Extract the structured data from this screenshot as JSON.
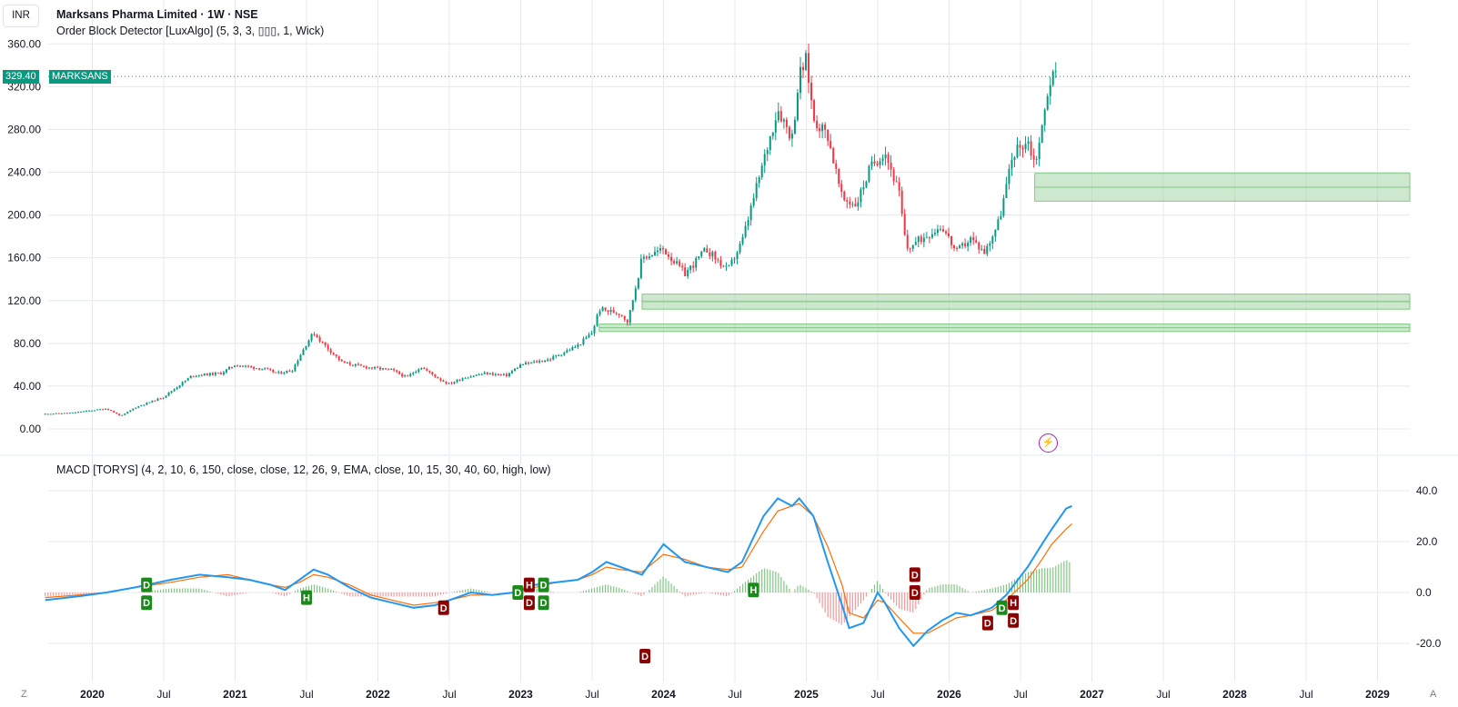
{
  "header": {
    "currency": "INR",
    "symbol_line": "Marksans Pharma Limited · 1W · NSE",
    "indicator_line": "Order Block Detector [LuxAlgo] (5, 3, 3, ▯▯▯, 1, Wick)"
  },
  "last_price": {
    "value": "329.40",
    "symbol": "MARKSANS"
  },
  "macd_header": "MACD [TORYS] (4, 2, 10, 6, 150, close, close, 12, 26, 9, EMA, close, 10, 15, 30, 40, 60, high, low)",
  "bottom_controls": {
    "left": "Z",
    "right": "A"
  },
  "colors": {
    "up": "#089981",
    "down": "#f23645",
    "macd": "#2196f3",
    "signal": "#ff6d00",
    "order_block": "#a5d6a7",
    "grid": "#e6e8ec"
  },
  "chart_data": [
    {
      "type": "candlestick",
      "title": "Marksans Pharma Limited · 1W · NSE",
      "ylim": [
        0,
        360
      ],
      "y_ticks": [
        "360.00",
        "320.00",
        "280.00",
        "240.00",
        "200.00",
        "160.00",
        "120.00",
        "80.00",
        "40.00",
        "0.00"
      ],
      "x_ticks": [
        "2020",
        "Jul",
        "2021",
        "Jul",
        "2022",
        "Jul",
        "2023",
        "Jul",
        "2024",
        "Jul",
        "2025",
        "Jul",
        "2026",
        "Jul",
        "2027",
        "Jul",
        "2028",
        "Jul",
        "2029"
      ],
      "x_tick_dates": [
        2020.0,
        2020.5,
        2021.0,
        2021.5,
        2022.0,
        2022.5,
        2023.0,
        2023.5,
        2024.0,
        2024.5,
        2025.0,
        2025.5,
        2026.0,
        2026.5,
        2027.0,
        2027.5,
        2028.0,
        2028.5,
        2029.0
      ],
      "price_path": [
        [
          2019.67,
          14
        ],
        [
          2019.85,
          15
        ],
        [
          2020.1,
          19
        ],
        [
          2020.2,
          12
        ],
        [
          2020.3,
          20
        ],
        [
          2020.5,
          30
        ],
        [
          2020.7,
          50
        ],
        [
          2020.9,
          52
        ],
        [
          2021.0,
          60
        ],
        [
          2021.2,
          56
        ],
        [
          2021.3,
          52
        ],
        [
          2021.4,
          55
        ],
        [
          2021.5,
          80
        ],
        [
          2021.55,
          90
        ],
        [
          2021.6,
          82
        ],
        [
          2021.75,
          62
        ],
        [
          2021.9,
          58
        ],
        [
          2022.1,
          55
        ],
        [
          2022.2,
          48
        ],
        [
          2022.3,
          58
        ],
        [
          2022.45,
          45
        ],
        [
          2022.5,
          42
        ],
        [
          2022.6,
          48
        ],
        [
          2022.75,
          52
        ],
        [
          2022.9,
          50
        ],
        [
          2023.0,
          60
        ],
        [
          2023.2,
          65
        ],
        [
          2023.4,
          78
        ],
        [
          2023.5,
          90
        ],
        [
          2023.55,
          112
        ],
        [
          2023.7,
          108
        ],
        [
          2023.75,
          100
        ],
        [
          2023.85,
          160
        ],
        [
          2024.0,
          168
        ],
        [
          2024.15,
          145
        ],
        [
          2024.3,
          168
        ],
        [
          2024.45,
          148
        ],
        [
          2024.55,
          175
        ],
        [
          2024.7,
          250
        ],
        [
          2024.8,
          300
        ],
        [
          2024.9,
          272
        ],
        [
          2024.95,
          330
        ],
        [
          2025.0,
          345
        ],
        [
          2025.05,
          290
        ],
        [
          2025.15,
          275
        ],
        [
          2025.25,
          215
        ],
        [
          2025.35,
          210
        ],
        [
          2025.45,
          245
        ],
        [
          2025.55,
          260
        ],
        [
          2025.65,
          220
        ],
        [
          2025.7,
          168
        ],
        [
          2025.85,
          182
        ],
        [
          2025.95,
          190
        ],
        [
          2026.05,
          165
        ],
        [
          2026.15,
          178
        ],
        [
          2026.25,
          165
        ],
        [
          2026.35,
          195
        ],
        [
          2026.45,
          258
        ],
        [
          2026.55,
          270
        ],
        [
          2026.6,
          248
        ],
        [
          2026.65,
          280
        ],
        [
          2026.7,
          325
        ],
        [
          2026.75,
          332
        ]
      ],
      "order_blocks": [
        {
          "from": 2026.6,
          "top": 239,
          "bottom": 213
        },
        {
          "from": 2023.85,
          "top": 126,
          "bottom": 112
        },
        {
          "from": 2023.55,
          "top": 98,
          "bottom": 91
        }
      ],
      "last_price": 329.4
    },
    {
      "type": "line",
      "title": "MACD [TORYS]",
      "ylim": [
        -30,
        42
      ],
      "y_ticks": [
        "40.0",
        "20.0",
        "0.0",
        "-20.0"
      ],
      "series": [
        {
          "values": [
            [
              2019.67,
              -3
            ],
            [
              2019.9,
              -1.5
            ],
            [
              2020.1,
              0
            ],
            [
              2020.3,
              2
            ],
            [
              2020.55,
              5
            ],
            [
              2020.75,
              7
            ],
            [
              2020.95,
              6
            ],
            [
              2021.1,
              5
            ],
            [
              2021.25,
              3
            ],
            [
              2021.35,
              1
            ],
            [
              2021.45,
              5
            ],
            [
              2021.55,
              9
            ],
            [
              2021.65,
              7
            ],
            [
              2021.8,
              2
            ],
            [
              2021.95,
              -2
            ],
            [
              2022.1,
              -4
            ],
            [
              2022.25,
              -6
            ],
            [
              2022.4,
              -5
            ],
            [
              2022.5,
              -3
            ],
            [
              2022.65,
              0
            ],
            [
              2022.8,
              -1
            ],
            [
              2022.95,
              0
            ],
            [
              2023.1,
              3
            ],
            [
              2023.25,
              4
            ],
            [
              2023.4,
              5
            ],
            [
              2023.5,
              8
            ],
            [
              2023.6,
              12
            ],
            [
              2023.7,
              10
            ],
            [
              2023.85,
              7
            ],
            [
              2024.0,
              19
            ],
            [
              2024.15,
              12
            ],
            [
              2024.3,
              10
            ],
            [
              2024.45,
              8
            ],
            [
              2024.55,
              12
            ],
            [
              2024.7,
              30
            ],
            [
              2024.8,
              37
            ],
            [
              2024.9,
              34
            ],
            [
              2024.95,
              37
            ],
            [
              2025.05,
              30
            ],
            [
              2025.15,
              12
            ],
            [
              2025.25,
              -5
            ],
            [
              2025.3,
              -14
            ],
            [
              2025.4,
              -12
            ],
            [
              2025.5,
              0
            ],
            [
              2025.55,
              -4
            ],
            [
              2025.65,
              -14
            ],
            [
              2025.75,
              -21
            ],
            [
              2025.85,
              -15
            ],
            [
              2025.95,
              -11
            ],
            [
              2026.05,
              -8
            ],
            [
              2026.15,
              -9
            ],
            [
              2026.3,
              -6
            ],
            [
              2026.4,
              -1
            ],
            [
              2026.55,
              10
            ],
            [
              2026.65,
              19
            ],
            [
              2026.72,
              25
            ],
            [
              2026.82,
              33
            ],
            [
              2026.86,
              34
            ]
          ]
        },
        {
          "values": [
            [
              2019.67,
              -2
            ],
            [
              2019.9,
              -1
            ],
            [
              2020.1,
              0
            ],
            [
              2020.3,
              2
            ],
            [
              2020.55,
              4
            ],
            [
              2020.75,
              6
            ],
            [
              2020.95,
              7
            ],
            [
              2021.1,
              5
            ],
            [
              2021.25,
              3
            ],
            [
              2021.35,
              2
            ],
            [
              2021.45,
              4
            ],
            [
              2021.55,
              7
            ],
            [
              2021.65,
              6
            ],
            [
              2021.8,
              3
            ],
            [
              2021.95,
              -1
            ],
            [
              2022.1,
              -3
            ],
            [
              2022.25,
              -5
            ],
            [
              2022.4,
              -4
            ],
            [
              2022.5,
              -3
            ],
            [
              2022.65,
              -1
            ],
            [
              2022.8,
              -1
            ],
            [
              2022.95,
              0
            ],
            [
              2023.1,
              2
            ],
            [
              2023.25,
              4
            ],
            [
              2023.4,
              5
            ],
            [
              2023.5,
              7
            ],
            [
              2023.6,
              10
            ],
            [
              2023.7,
              9
            ],
            [
              2023.85,
              8
            ],
            [
              2024.0,
              15
            ],
            [
              2024.15,
              13
            ],
            [
              2024.3,
              10
            ],
            [
              2024.45,
              9
            ],
            [
              2024.55,
              10
            ],
            [
              2024.7,
              24
            ],
            [
              2024.8,
              32
            ],
            [
              2024.9,
              34
            ],
            [
              2024.95,
              35
            ],
            [
              2025.05,
              30
            ],
            [
              2025.15,
              18
            ],
            [
              2025.25,
              3
            ],
            [
              2025.3,
              -8
            ],
            [
              2025.4,
              -10
            ],
            [
              2025.5,
              -3
            ],
            [
              2025.55,
              -4
            ],
            [
              2025.65,
              -10
            ],
            [
              2025.75,
              -16
            ],
            [
              2025.85,
              -16
            ],
            [
              2025.95,
              -13
            ],
            [
              2026.05,
              -10
            ],
            [
              2026.15,
              -9
            ],
            [
              2026.3,
              -7
            ],
            [
              2026.4,
              -3
            ],
            [
              2026.55,
              5
            ],
            [
              2026.65,
              13
            ],
            [
              2026.72,
              19
            ],
            [
              2026.82,
              25
            ],
            [
              2026.86,
              27
            ]
          ]
        }
      ],
      "labels": [
        {
          "t": "D",
          "x": 2020.38,
          "v": 3,
          "c": "g"
        },
        {
          "t": "D",
          "x": 2020.38,
          "v": -4,
          "c": "g"
        },
        {
          "t": "H",
          "x": 2021.5,
          "v": -2,
          "c": "g"
        },
        {
          "t": "D",
          "x": 2022.46,
          "v": -6,
          "c": "r"
        },
        {
          "t": "D",
          "x": 2022.98,
          "v": 0,
          "c": "g"
        },
        {
          "t": "H",
          "x": 2023.06,
          "v": 3,
          "c": "r"
        },
        {
          "t": "D",
          "x": 2023.06,
          "v": -4,
          "c": "r"
        },
        {
          "t": "D",
          "x": 2023.16,
          "v": 3,
          "c": "g"
        },
        {
          "t": "D",
          "x": 2023.16,
          "v": -4,
          "c": "g"
        },
        {
          "t": "D",
          "x": 2023.87,
          "v": -25,
          "c": "r"
        },
        {
          "t": "H",
          "x": 2024.63,
          "v": 1,
          "c": "g"
        },
        {
          "t": "D",
          "x": 2025.76,
          "v": 7,
          "c": "r"
        },
        {
          "t": "D",
          "x": 2025.76,
          "v": 0,
          "c": "r"
        },
        {
          "t": "D",
          "x": 2026.27,
          "v": -12,
          "c": "r"
        },
        {
          "t": "D",
          "x": 2026.37,
          "v": -6,
          "c": "g"
        },
        {
          "t": "H",
          "x": 2026.45,
          "v": -4,
          "c": "r"
        },
        {
          "t": "D",
          "x": 2026.45,
          "v": -11,
          "c": "r"
        }
      ]
    }
  ]
}
